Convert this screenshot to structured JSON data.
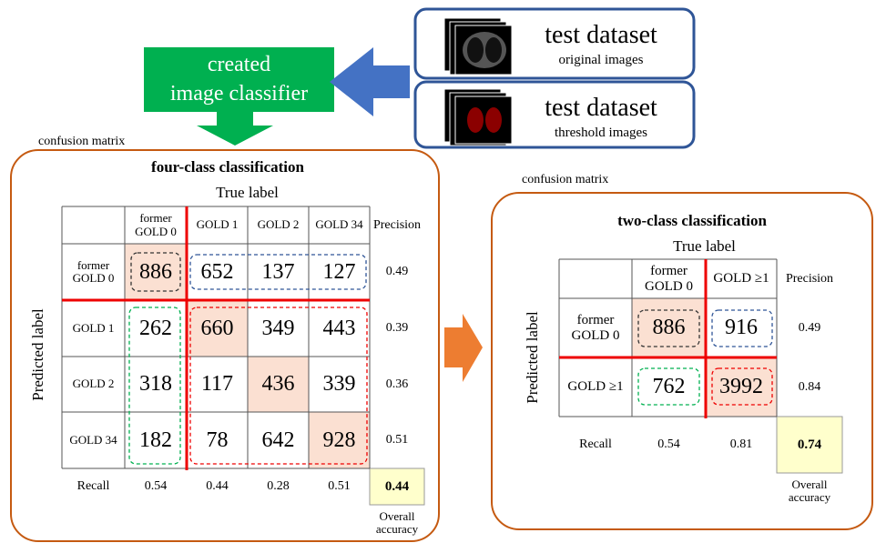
{
  "classifier": {
    "lines": [
      "created",
      "image classifier"
    ]
  },
  "datasets": [
    {
      "title": "test dataset",
      "subtitle": "original images"
    },
    {
      "title": "test dataset",
      "subtitle": "threshold images"
    }
  ],
  "four_class": {
    "caption": "confusion matrix",
    "title": "four-class classification",
    "true_label": "True label",
    "predicted_label": "Predicted label",
    "columns": [
      "former GOLD 0",
      "GOLD 1",
      "GOLD 2",
      "GOLD 34"
    ],
    "precision_header": "Precision",
    "rows": [
      {
        "label": "former GOLD 0",
        "cells": [
          886,
          652,
          137,
          127
        ],
        "precision": 0.49
      },
      {
        "label": "GOLD 1",
        "cells": [
          262,
          660,
          349,
          443
        ],
        "precision": 0.39
      },
      {
        "label": "GOLD 2",
        "cells": [
          318,
          117,
          436,
          339
        ],
        "precision": 0.36
      },
      {
        "label": "GOLD 34",
        "cells": [
          182,
          78,
          642,
          928
        ],
        "precision": 0.51
      }
    ],
    "recall_label": "Recall",
    "recall": [
      0.54,
      0.44,
      0.28,
      0.51
    ],
    "overall": 0.44,
    "overall_label": "Overall accuracy"
  },
  "two_class": {
    "caption": "confusion matrix",
    "title": "two-class classification",
    "true_label": "True label",
    "predicted_label": "Predicted label",
    "columns": [
      "former GOLD 0",
      "GOLD ≥1"
    ],
    "precision_header": "Precision",
    "rows": [
      {
        "label": "former GOLD 0",
        "cells": [
          886,
          916
        ],
        "precision": 0.49
      },
      {
        "label": "GOLD ≥1",
        "cells": [
          762,
          3992
        ],
        "precision": 0.84
      }
    ],
    "recall_label": "Recall",
    "recall": [
      0.54,
      0.81
    ],
    "overall": 0.74,
    "overall_label": "Overall accuracy"
  }
}
